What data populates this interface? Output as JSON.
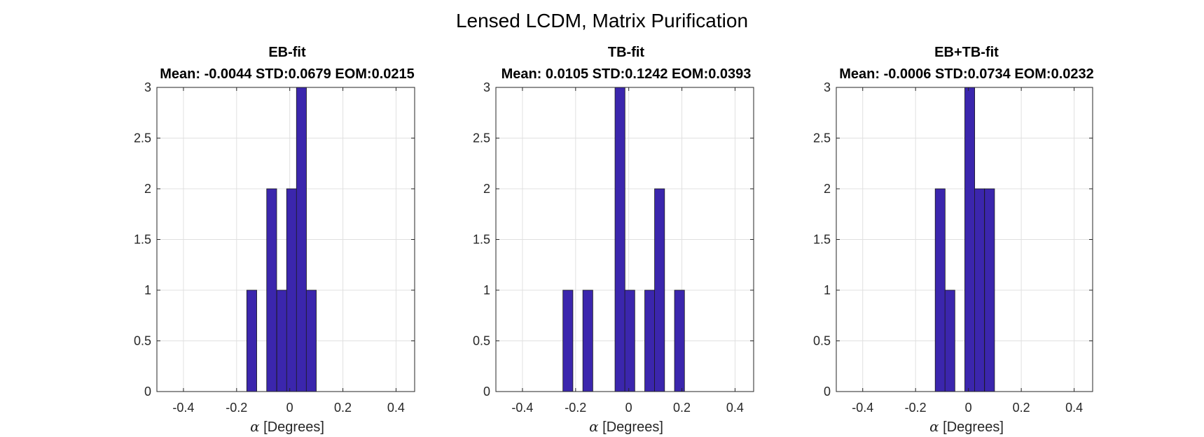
{
  "figure": {
    "title": "Lensed LCDM, Matrix Purification",
    "bar_color": "#3b26ad",
    "bar_edge_color": "#1a1a1a",
    "grid_color": "#e0e0e0",
    "axis_color": "#262626"
  },
  "chart_data": [
    {
      "type": "bar",
      "title": "EB-fit",
      "subtitle": "Mean: -0.0044 STD:0.0679 EOM:0.0215",
      "xlabel_symbol": "α",
      "xlabel_text": " [Degrees]",
      "xlim": [
        -0.5,
        0.47
      ],
      "ylim": [
        0,
        3
      ],
      "xticks": [
        -0.4,
        -0.2,
        0,
        0.2,
        0.4
      ],
      "xtick_labels": [
        "-0.4",
        "-0.2",
        "0",
        "0.2",
        "0.4"
      ],
      "yticks": [
        0,
        0.5,
        1,
        1.5,
        2,
        2.5,
        3
      ],
      "ytick_labels": [
        "0",
        "0.5",
        "1",
        "1.5",
        "2",
        "2.5",
        "3"
      ],
      "grid": true,
      "bin_width": 0.0375,
      "bins": [
        {
          "x": -0.143,
          "count": 1
        },
        {
          "x": -0.068,
          "count": 2
        },
        {
          "x": -0.03,
          "count": 1
        },
        {
          "x": 0.007,
          "count": 2
        },
        {
          "x": 0.044,
          "count": 3
        },
        {
          "x": 0.081,
          "count": 1
        }
      ]
    },
    {
      "type": "bar",
      "title": "TB-fit",
      "subtitle": "Mean: 0.0105 STD:0.1242 EOM:0.0393",
      "xlabel_symbol": "α",
      "xlabel_text": " [Degrees]",
      "xlim": [
        -0.5,
        0.47
      ],
      "ylim": [
        0,
        3
      ],
      "xticks": [
        -0.4,
        -0.2,
        0,
        0.2,
        0.4
      ],
      "xtick_labels": [
        "-0.4",
        "-0.2",
        "0",
        "0.2",
        "0.4"
      ],
      "yticks": [
        0,
        0.5,
        1,
        1.5,
        2,
        2.5,
        3
      ],
      "ytick_labels": [
        "0",
        "0.5",
        "1",
        "1.5",
        "2",
        "2.5",
        "3"
      ],
      "grid": true,
      "bin_width": 0.0375,
      "bins": [
        {
          "x": -0.229,
          "count": 1
        },
        {
          "x": -0.154,
          "count": 1
        },
        {
          "x": -0.033,
          "count": 3
        },
        {
          "x": 0.004,
          "count": 1
        },
        {
          "x": 0.079,
          "count": 1
        },
        {
          "x": 0.116,
          "count": 2
        },
        {
          "x": 0.191,
          "count": 1
        }
      ]
    },
    {
      "type": "bar",
      "title": "EB+TB-fit",
      "subtitle": "Mean: -0.0006 STD:0.0734 EOM:0.0232",
      "xlabel_symbol": "α",
      "xlabel_text": " [Degrees]",
      "xlim": [
        -0.5,
        0.47
      ],
      "ylim": [
        0,
        3
      ],
      "xticks": [
        -0.4,
        -0.2,
        0,
        0.2,
        0.4
      ],
      "xtick_labels": [
        "-0.4",
        "-0.2",
        "0",
        "0.2",
        "0.4"
      ],
      "yticks": [
        0,
        0.5,
        1,
        1.5,
        2,
        2.5,
        3
      ],
      "ytick_labels": [
        "0",
        "0.5",
        "1",
        "1.5",
        "2",
        "2.5",
        "3"
      ],
      "grid": true,
      "bin_width": 0.0375,
      "bins": [
        {
          "x": -0.107,
          "count": 2
        },
        {
          "x": -0.07,
          "count": 1
        },
        {
          "x": 0.005,
          "count": 3
        },
        {
          "x": 0.042,
          "count": 2
        },
        {
          "x": 0.08,
          "count": 2
        }
      ]
    }
  ]
}
